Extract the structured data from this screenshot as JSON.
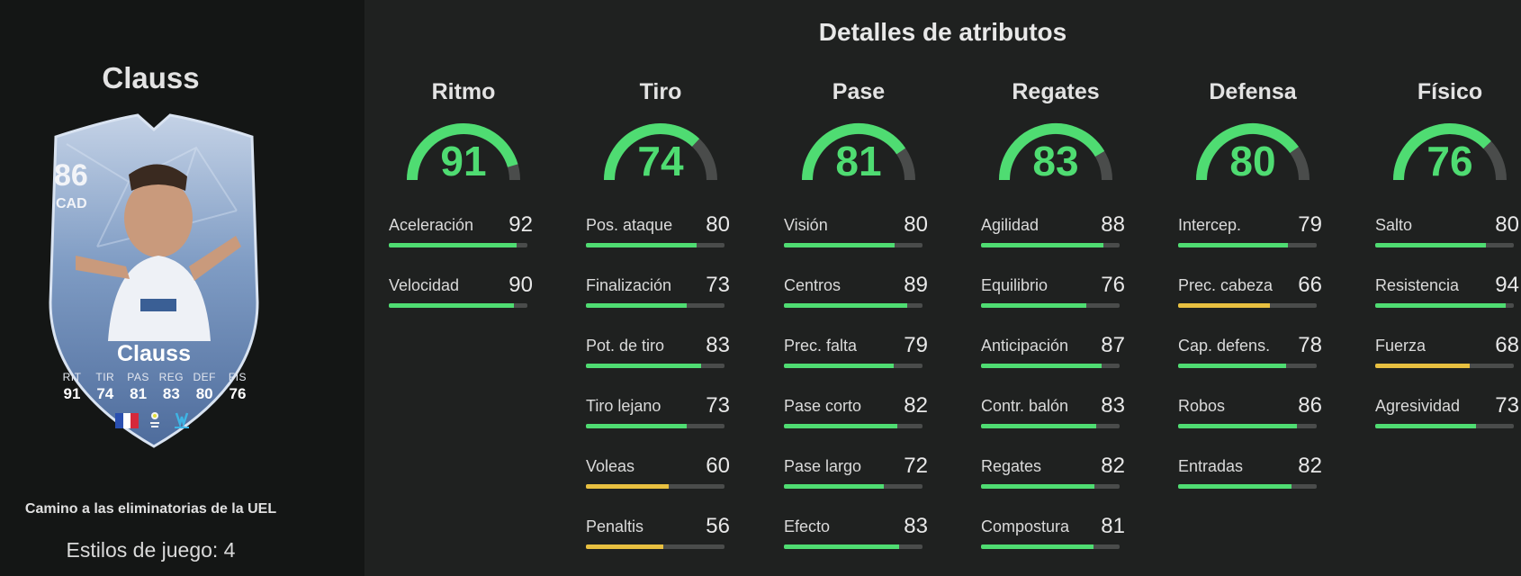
{
  "title": "Detalles de atributos",
  "player": {
    "name": "Clauss",
    "rating": "86",
    "position": "CAD",
    "card_name": "Clauss",
    "program": "Camino a las eliminatorias de la UEL",
    "playstyles_label": "Estilos de juego: 4",
    "card_stats": [
      {
        "label": "RIT",
        "value": "91"
      },
      {
        "label": "TIR",
        "value": "74"
      },
      {
        "label": "PAS",
        "value": "81"
      },
      {
        "label": "REG",
        "value": "83"
      },
      {
        "label": "DEF",
        "value": "80"
      },
      {
        "label": "FÍS",
        "value": "76"
      }
    ]
  },
  "colors": {
    "high": "#4fdc72",
    "mid": "#e8c040",
    "track": "#4a4c4b"
  },
  "categories": [
    {
      "name": "Ritmo",
      "value": 91,
      "attrs": [
        {
          "name": "Aceleración",
          "value": 92
        },
        {
          "name": "Velocidad",
          "value": 90
        }
      ]
    },
    {
      "name": "Tiro",
      "value": 74,
      "attrs": [
        {
          "name": "Pos. ataque",
          "value": 80
        },
        {
          "name": "Finalización",
          "value": 73
        },
        {
          "name": "Pot. de tiro",
          "value": 83
        },
        {
          "name": "Tiro lejano",
          "value": 73
        },
        {
          "name": "Voleas",
          "value": 60
        },
        {
          "name": "Penaltis",
          "value": 56
        }
      ]
    },
    {
      "name": "Pase",
      "value": 81,
      "attrs": [
        {
          "name": "Visión",
          "value": 80
        },
        {
          "name": "Centros",
          "value": 89
        },
        {
          "name": "Prec. falta",
          "value": 79
        },
        {
          "name": "Pase corto",
          "value": 82
        },
        {
          "name": "Pase largo",
          "value": 72
        },
        {
          "name": "Efecto",
          "value": 83
        }
      ]
    },
    {
      "name": "Regates",
      "value": 83,
      "attrs": [
        {
          "name": "Agilidad",
          "value": 88
        },
        {
          "name": "Equilibrio",
          "value": 76
        },
        {
          "name": "Anticipación",
          "value": 87
        },
        {
          "name": "Contr. balón",
          "value": 83
        },
        {
          "name": "Regates",
          "value": 82
        },
        {
          "name": "Compostura",
          "value": 81
        }
      ]
    },
    {
      "name": "Defensa",
      "value": 80,
      "attrs": [
        {
          "name": "Intercep.",
          "value": 79
        },
        {
          "name": "Prec. cabeza",
          "value": 66
        },
        {
          "name": "Cap. defens.",
          "value": 78
        },
        {
          "name": "Robos",
          "value": 86
        },
        {
          "name": "Entradas",
          "value": 82
        }
      ]
    },
    {
      "name": "Físico",
      "value": 76,
      "attrs": [
        {
          "name": "Salto",
          "value": 80
        },
        {
          "name": "Resistencia",
          "value": 94
        },
        {
          "name": "Fuerza",
          "value": 68
        },
        {
          "name": "Agresividad",
          "value": 73
        }
      ]
    }
  ]
}
